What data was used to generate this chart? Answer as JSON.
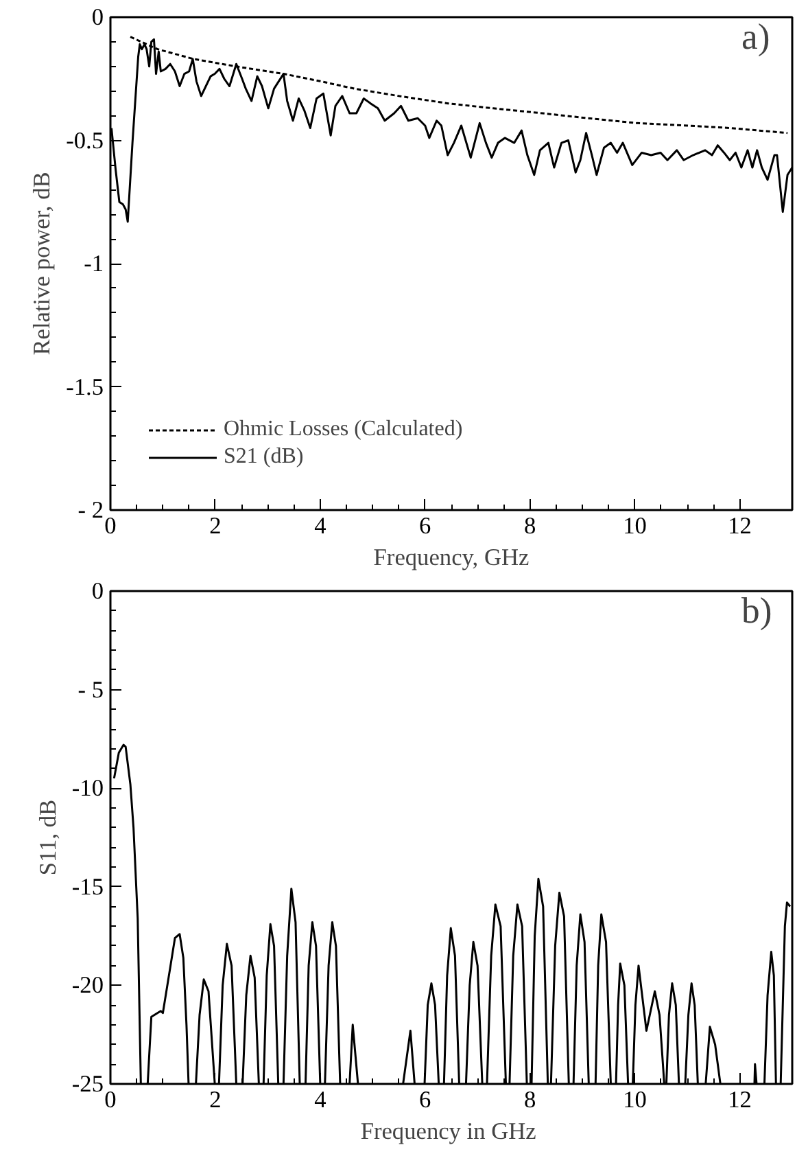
{
  "chart_data": [
    {
      "type": "line",
      "xlabel": "Frequency, GHz",
      "ylabel": "Relative power, dB",
      "annotations": [
        "a)"
      ],
      "legend": "bottom left",
      "xlim": [
        0,
        13
      ],
      "xticks": [
        0,
        2,
        4,
        6,
        8,
        10,
        12
      ],
      "ylim": [
        -2,
        0
      ],
      "yticks": [
        {
          "value": -2,
          "label": "- 2"
        },
        -1.5,
        -1,
        -0.5,
        0
      ],
      "series": [
        {
          "name": "Ohmic Losses (Calculated)",
          "color": "#000000",
          "line_style": "dashed",
          "x": [
            0.38,
            0.9,
            1.59,
            2.4,
            3.3,
            4.0,
            4.65,
            5.5,
            6.44,
            7.3,
            8.24,
            9.1,
            10.04,
            11.0,
            11.83,
            12.91
          ],
          "values": [
            -0.08,
            -0.13,
            -0.17,
            -0.2,
            -0.23,
            -0.26,
            -0.29,
            -0.32,
            -0.35,
            -0.37,
            -0.39,
            -0.41,
            -0.43,
            -0.44,
            -0.45,
            -0.47
          ]
        },
        {
          "name": "S21 (dB)",
          "color": "#000000",
          "line_style": "solid",
          "x": [
            0.02,
            0.1,
            0.17,
            0.24,
            0.29,
            0.33,
            0.42,
            0.53,
            0.56,
            0.6,
            0.65,
            0.69,
            0.74,
            0.78,
            0.83,
            0.87,
            0.92,
            0.96,
            1.05,
            1.14,
            1.23,
            1.32,
            1.41,
            1.5,
            1.57,
            1.64,
            1.73,
            1.82,
            1.91,
            1.99,
            2.08,
            2.17,
            2.27,
            2.4,
            2.51,
            2.58,
            2.69,
            2.8,
            2.89,
            3.01,
            3.12,
            3.3,
            3.37,
            3.48,
            3.59,
            3.7,
            3.81,
            3.93,
            4.06,
            4.2,
            4.29,
            4.42,
            4.56,
            4.69,
            4.83,
            4.96,
            5.1,
            5.23,
            5.41,
            5.54,
            5.68,
            5.86,
            6.0,
            6.08,
            6.22,
            6.31,
            6.43,
            6.55,
            6.69,
            6.87,
            7.04,
            7.16,
            7.27,
            7.39,
            7.52,
            7.7,
            7.84,
            7.95,
            8.08,
            8.19,
            8.35,
            8.46,
            8.6,
            8.73,
            8.87,
            8.96,
            9.07,
            9.18,
            9.27,
            9.41,
            9.54,
            9.66,
            9.77,
            9.95,
            10.13,
            10.31,
            10.49,
            10.62,
            10.8,
            10.93,
            11.11,
            11.34,
            11.47,
            11.58,
            11.7,
            11.81,
            11.92,
            12.03,
            12.15,
            12.24,
            12.33,
            12.42,
            12.53,
            12.66,
            12.71,
            12.82,
            12.91,
            13.0
          ],
          "values": [
            -0.45,
            -0.62,
            -0.75,
            -0.76,
            -0.78,
            -0.83,
            -0.51,
            -0.16,
            -0.11,
            -0.13,
            -0.11,
            -0.13,
            -0.2,
            -0.1,
            -0.09,
            -0.23,
            -0.14,
            -0.22,
            -0.21,
            -0.19,
            -0.22,
            -0.28,
            -0.23,
            -0.22,
            -0.17,
            -0.26,
            -0.32,
            -0.28,
            -0.24,
            -0.23,
            -0.21,
            -0.25,
            -0.28,
            -0.19,
            -0.25,
            -0.29,
            -0.34,
            -0.24,
            -0.28,
            -0.37,
            -0.29,
            -0.23,
            -0.34,
            -0.42,
            -0.33,
            -0.38,
            -0.45,
            -0.33,
            -0.31,
            -0.48,
            -0.36,
            -0.32,
            -0.39,
            -0.39,
            -0.33,
            -0.35,
            -0.37,
            -0.42,
            -0.39,
            -0.36,
            -0.42,
            -0.41,
            -0.44,
            -0.49,
            -0.42,
            -0.44,
            -0.56,
            -0.51,
            -0.44,
            -0.57,
            -0.43,
            -0.51,
            -0.57,
            -0.51,
            -0.49,
            -0.51,
            -0.46,
            -0.56,
            -0.64,
            -0.54,
            -0.51,
            -0.61,
            -0.51,
            -0.5,
            -0.63,
            -0.58,
            -0.47,
            -0.56,
            -0.64,
            -0.53,
            -0.51,
            -0.55,
            -0.51,
            -0.6,
            -0.55,
            -0.56,
            -0.55,
            -0.58,
            -0.54,
            -0.58,
            -0.56,
            -0.54,
            -0.56,
            -0.52,
            -0.55,
            -0.58,
            -0.55,
            -0.61,
            -0.54,
            -0.61,
            -0.54,
            -0.61,
            -0.66,
            -0.56,
            -0.56,
            -0.79,
            -0.64,
            -0.61
          ]
        }
      ]
    },
    {
      "type": "line",
      "xlabel": "Frequency  in GHz",
      "ylabel": "S11, dB",
      "annotations": [
        "b)"
      ],
      "xlim": [
        0,
        13
      ],
      "xticks": [
        0,
        2,
        4,
        6,
        8,
        10,
        12
      ],
      "ylim": [
        -25,
        0
      ],
      "yticks": [
        -25,
        -20,
        -15,
        -10,
        {
          "value": -5,
          "label": "- 5"
        },
        0
      ],
      "series": [
        {
          "color": "#000000",
          "line_style": "solid",
          "x": [
            0.07,
            0.16,
            0.25,
            0.29,
            0.38,
            0.44,
            0.52,
            0.58,
            0.64,
            0.71,
            0.78,
            0.96,
            1.0,
            1.14,
            1.23,
            1.32,
            1.39,
            1.45,
            1.49,
            1.56,
            1.63,
            1.7,
            1.78,
            1.87,
            1.99,
            2.03,
            2.07,
            2.14,
            2.22,
            2.31,
            2.4,
            2.46,
            2.52,
            2.59,
            2.67,
            2.75,
            2.83,
            2.88,
            2.92,
            2.98,
            3.05,
            3.12,
            3.2,
            3.25,
            3.3,
            3.37,
            3.45,
            3.53,
            3.61,
            3.66,
            3.72,
            3.78,
            3.85,
            3.92,
            4.0,
            4.05,
            4.09,
            4.16,
            4.23,
            4.3,
            4.38,
            4.47,
            4.56,
            4.62,
            4.72,
            5.1,
            5.58,
            5.72,
            5.8,
            5.9,
            5.99,
            6.05,
            6.12,
            6.19,
            6.26,
            6.31,
            6.36,
            6.42,
            6.49,
            6.57,
            6.65,
            6.72,
            6.78,
            6.85,
            6.92,
            7.0,
            7.09,
            7.13,
            7.18,
            7.26,
            7.34,
            7.44,
            7.54,
            7.58,
            7.61,
            7.68,
            7.76,
            7.85,
            7.94,
            7.99,
            8.03,
            8.09,
            8.16,
            8.25,
            8.34,
            8.37,
            8.4,
            8.48,
            8.56,
            8.65,
            8.74,
            8.79,
            8.83,
            8.89,
            8.96,
            9.04,
            9.12,
            9.19,
            9.25,
            9.3,
            9.36,
            9.45,
            9.54,
            9.59,
            9.64,
            9.68,
            9.72,
            9.8,
            9.87,
            9.92,
            9.96,
            10.01,
            10.07,
            10.22,
            10.38,
            10.47,
            10.56,
            10.58,
            10.6,
            10.65,
            10.71,
            10.78,
            10.84,
            10.9,
            10.96,
            11.02,
            11.08,
            11.14,
            11.2,
            11.28,
            11.35,
            11.43,
            11.53,
            11.63,
            11.95,
            12.28,
            12.29,
            12.32,
            12.4,
            12.47,
            12.53,
            12.6,
            12.65,
            12.69,
            12.74,
            12.78,
            12.86,
            12.9,
            12.96
          ],
          "values": [
            -9.5,
            -8.2,
            -7.8,
            -7.9,
            -9.8,
            -12.0,
            -16.6,
            -25,
            null,
            -25,
            -21.6,
            -21.3,
            -21.4,
            -19.1,
            -17.6,
            -17.4,
            -18.6,
            -22.0,
            -25,
            null,
            -25,
            -21.5,
            -19.7,
            -20.3,
            -25,
            null,
            -25,
            -20.0,
            -17.9,
            -19.0,
            -25,
            null,
            -25,
            -20.5,
            -18.5,
            -19.6,
            -25,
            null,
            -25,
            -19.5,
            -16.9,
            -18.0,
            -25,
            null,
            -25,
            -18.5,
            -15.1,
            -16.8,
            -25,
            null,
            -25,
            -19.0,
            -16.8,
            -18.0,
            -25,
            null,
            -25,
            -19.0,
            -16.8,
            -18.0,
            -25,
            null,
            -25,
            -22.0,
            -25,
            null,
            -25,
            -22.3,
            -25,
            null,
            -25,
            -21.0,
            -19.9,
            -21.0,
            -25,
            null,
            -25,
            -19.5,
            -17.1,
            -18.5,
            -25,
            null,
            -25,
            -20.0,
            -17.8,
            -19.0,
            -25,
            null,
            -25,
            -18.5,
            -15.9,
            -17.0,
            -25,
            null,
            -25,
            -18.5,
            -15.9,
            -17.0,
            -25,
            null,
            -25,
            -17.5,
            -14.6,
            -16.0,
            -25,
            null,
            -25,
            -18.0,
            -15.3,
            -16.5,
            -25,
            null,
            -25,
            -19.0,
            -16.4,
            -17.8,
            -25,
            null,
            -25,
            -19.0,
            -16.4,
            -17.8,
            -25,
            null,
            -25,
            -21.0,
            -18.9,
            -20.0,
            -25,
            null,
            -25,
            -21.0,
            -19.0,
            -22.3,
            -20.3,
            -21.5,
            -25,
            null,
            -25,
            -21.5,
            -19.9,
            -21.0,
            -25,
            null,
            -25,
            -21.5,
            -19.9,
            -21.0,
            -25,
            null,
            -25,
            -22.1,
            -23.0,
            -25,
            null,
            -25,
            -24.0,
            -25,
            null,
            -25,
            -20.5,
            -18.3,
            -19.5,
            -25,
            null,
            -25,
            -17.0,
            -15.8,
            -16.0
          ]
        }
      ]
    }
  ]
}
